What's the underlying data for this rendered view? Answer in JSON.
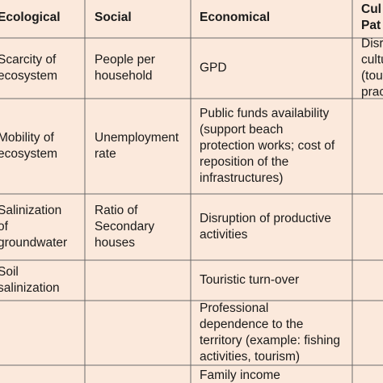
{
  "table": {
    "header": [
      [
        "Ecological"
      ],
      [
        "Social"
      ],
      [
        "Economical"
      ],
      [
        "Cul",
        "Pat"
      ]
    ],
    "rows": [
      [
        [
          "Scarcity of",
          "ecosystem"
        ],
        [
          "People per",
          "household"
        ],
        [
          "GPD"
        ],
        [
          "Disr",
          "cultu",
          "(tou",
          "prac"
        ]
      ],
      [
        [
          "Mobility of",
          "ecosystem"
        ],
        [
          "Unemployment",
          "rate"
        ],
        [
          "Public funds availability",
          "(support beach",
          "protection works; cost of",
          "reposition of the",
          "infrastructures)"
        ],
        []
      ],
      [
        [
          "Salinization",
          "of",
          "groundwater"
        ],
        [
          "Ratio of",
          "Secondary",
          "houses"
        ],
        [
          "Disruption of productive",
          "activities"
        ],
        []
      ],
      [
        [
          "Soil",
          "salinization"
        ],
        [],
        [
          "Touristic turn-over"
        ],
        []
      ],
      [
        [],
        [],
        [
          "Professional",
          "dependence to the",
          "territory (example: fishing",
          "activities, tourism)"
        ],
        []
      ],
      [
        [],
        [],
        [
          "Family income"
        ],
        []
      ]
    ]
  }
}
